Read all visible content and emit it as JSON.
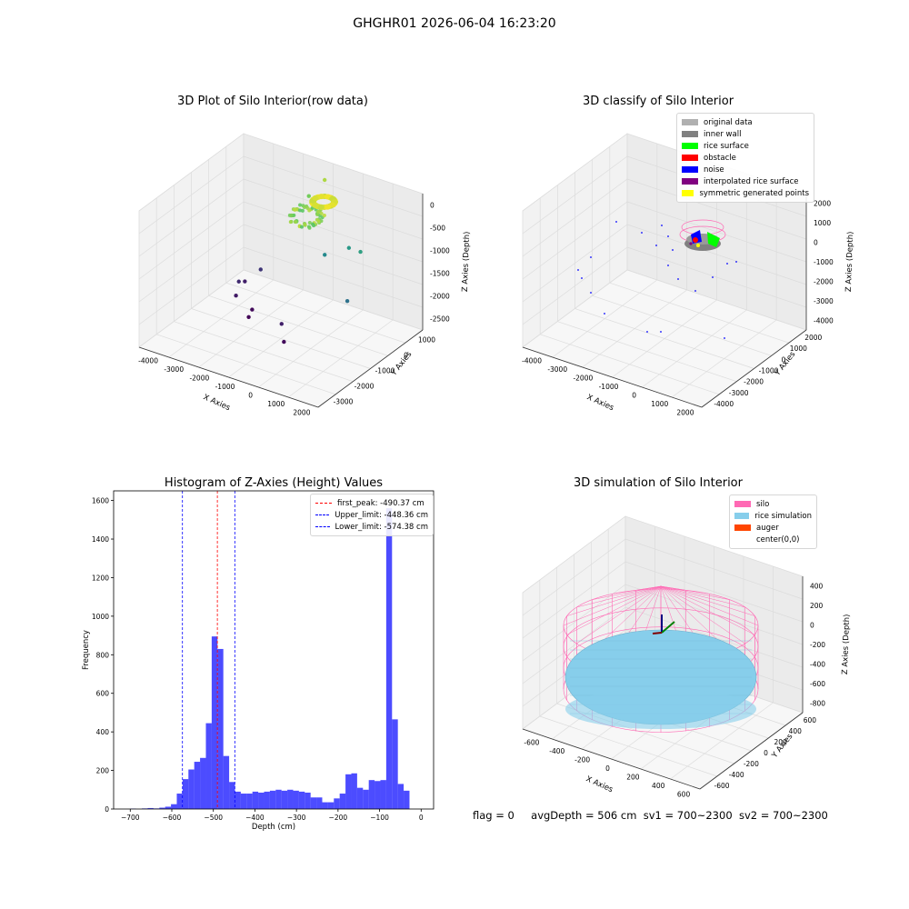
{
  "figure": {
    "suptitle": "GHGHR01 2026-06-04 16:23:20",
    "footer": {
      "flag": "flag = 0",
      "avg_depth": "avgDepth = 506 cm",
      "sv1": "sv1 = 700~2300",
      "sv2": "sv2 = 700~2300"
    }
  },
  "chart_data": [
    {
      "type": "scatter",
      "projection": "3d",
      "title": "3D Plot of Silo Interior(row data)",
      "xlabel": "X Axies",
      "ylabel": "Y Axies",
      "zlabel": "Z Axies (Depth)",
      "x_ticks": [
        "-4000",
        "-3000",
        "-2000",
        "-1000",
        "0",
        "1000",
        "2000"
      ],
      "y_ticks": [
        "-3000",
        "-2000",
        "-1000",
        "0",
        "1000"
      ],
      "z_ticks": [
        "0",
        "-500",
        "-1000",
        "-1500",
        "-2000",
        "-2500"
      ],
      "colormap": "viridis",
      "points": [
        {
          "x": -3500,
          "y": 500,
          "z": -2700
        },
        {
          "x": -3500,
          "y": 200,
          "z": -2600
        },
        {
          "x": -3300,
          "y": -200,
          "z": -2750
        },
        {
          "x": -3200,
          "y": 900,
          "z": -2500
        },
        {
          "x": -2600,
          "y": -300,
          "z": -2900
        },
        {
          "x": -2500,
          "y": -600,
          "z": -2950
        },
        {
          "x": -1000,
          "y": -900,
          "z": -2700
        },
        {
          "x": -600,
          "y": -1300,
          "z": -2900
        },
        {
          "x": 1300,
          "y": -600,
          "z": -1800
        },
        {
          "x": -500,
          "y": 600,
          "z": -1500
        },
        {
          "x": 200,
          "y": 900,
          "z": -1300
        },
        {
          "x": 800,
          "y": 700,
          "z": -1200
        },
        {
          "x": -1500,
          "y": 1100,
          "z": -500
        },
        {
          "x": -1200,
          "y": 1500,
          "z": -200
        }
      ]
    },
    {
      "type": "scatter",
      "projection": "3d",
      "title": "3D classify of Silo Interior",
      "xlabel": "X Axies",
      "ylabel": "Y Axies",
      "zlabel": "Z Axies (Depth)",
      "x_ticks": [
        "-4000",
        "-3000",
        "-2000",
        "-1000",
        "0",
        "1000",
        "2000"
      ],
      "y_ticks": [
        "-4000",
        "-3000",
        "-2000",
        "-1000",
        "0",
        "1000",
        "2000"
      ],
      "z_ticks": [
        "2000",
        "1000",
        "0",
        "-1000",
        "-2000",
        "-3000",
        "-4000"
      ],
      "legend": [
        {
          "label": "original data",
          "color": "#b0b0b0"
        },
        {
          "label": "inner wall",
          "color": "#808080"
        },
        {
          "label": "rice surface",
          "color": "#00ff00"
        },
        {
          "label": "obstacle",
          "color": "#ff0000"
        },
        {
          "label": "noise",
          "color": "#0000ff"
        },
        {
          "label": "interpolated rice surface",
          "color": "#800080"
        },
        {
          "label": "symmetric generated points",
          "color": "#ffff00"
        }
      ]
    },
    {
      "type": "bar",
      "title": "Histogram of Z-Axies (Height) Values",
      "xlabel": "Depth (cm)",
      "ylabel": "Frequency",
      "xlim": [
        -740,
        30
      ],
      "ylim": [
        0,
        1650
      ],
      "x_ticks": [
        -700,
        -600,
        -500,
        -400,
        -300,
        -200,
        -100,
        0
      ],
      "y_ticks": [
        0,
        200,
        400,
        600,
        800,
        1000,
        1200,
        1400,
        1600
      ],
      "bin_width": 14,
      "bins_start": -700,
      "values": [
        2,
        0,
        3,
        5,
        3,
        7,
        12,
        25,
        80,
        155,
        205,
        245,
        265,
        445,
        895,
        830,
        275,
        140,
        90,
        80,
        80,
        90,
        85,
        90,
        95,
        100,
        95,
        100,
        95,
        90,
        85,
        60,
        60,
        35,
        35,
        55,
        80,
        180,
        185,
        110,
        100,
        150,
        145,
        150,
        1560,
        465,
        130,
        95
      ],
      "bar_color": "#0000ff",
      "lines": [
        {
          "label": "first_peak: -490.37 cm",
          "x": -490.37,
          "color": "#ff0000"
        },
        {
          "label": "Upper_limit: -448.36 cm",
          "x": -448.36,
          "color": "#0000ff"
        },
        {
          "label": "Lower_limit: -574.38 cm",
          "x": -574.38,
          "color": "#0000ff"
        }
      ]
    },
    {
      "type": "surface",
      "projection": "3d",
      "title": "3D simulation of Silo Interior",
      "xlabel": "X Axies",
      "ylabel": "Y Axies",
      "zlabel": "Z Axies (Depth)",
      "x_ticks": [
        "-600",
        "-400",
        "-200",
        "0",
        "200",
        "400",
        "600"
      ],
      "y_ticks": [
        "-600",
        "-400",
        "-200",
        "0",
        "200",
        "400",
        "600"
      ],
      "z_ticks": [
        "400",
        "200",
        "0",
        "-200",
        "-400",
        "-600",
        "-800"
      ],
      "legend": [
        {
          "label": "silo",
          "color": "#ff69b4"
        },
        {
          "label": "rice simulation",
          "color": "#87ceeb"
        },
        {
          "label": "auger",
          "color": "#ff4500"
        },
        {
          "label": "center(0,0)",
          "color": ""
        }
      ]
    }
  ]
}
